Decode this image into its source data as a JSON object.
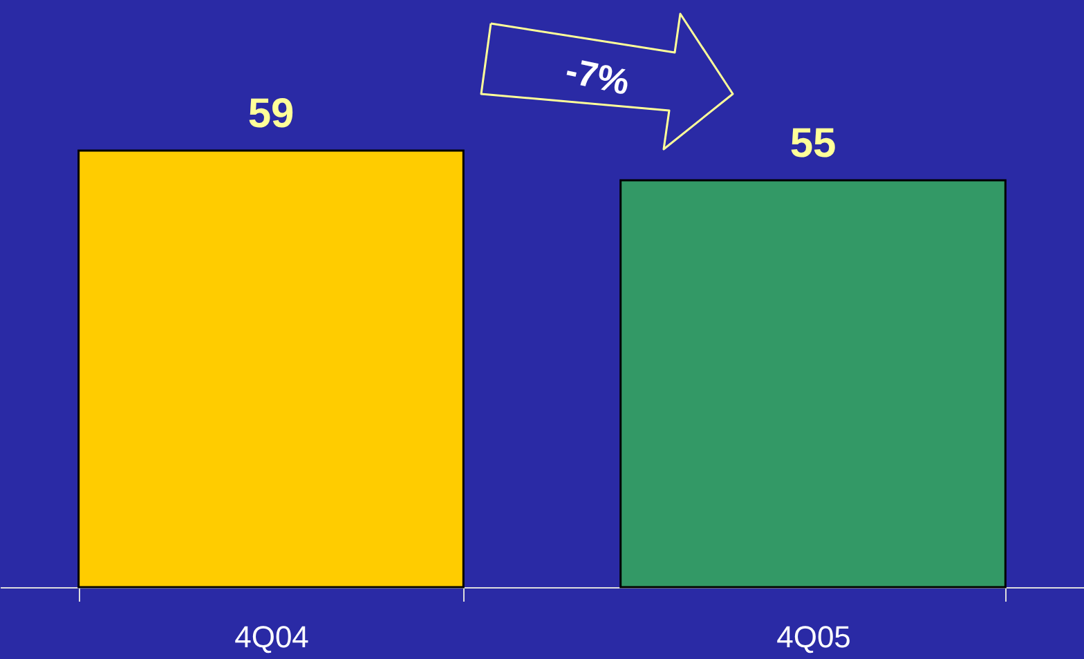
{
  "chart_data": {
    "type": "bar",
    "categories": [
      "4Q04",
      "4Q05"
    ],
    "values": [
      59,
      55
    ],
    "colors": [
      "#ffcc00",
      "#339966"
    ],
    "data_labels": true,
    "annotations": [
      "-7%"
    ]
  }
}
